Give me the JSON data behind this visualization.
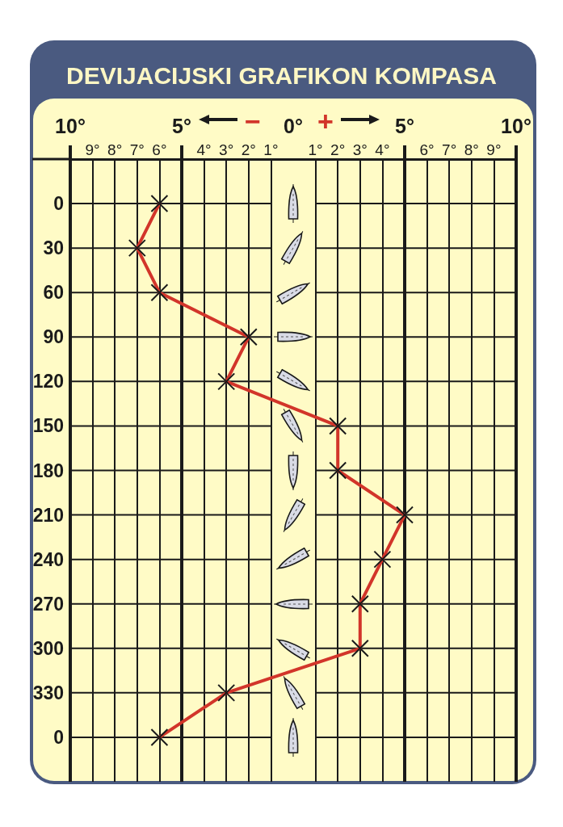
{
  "chart_data": {
    "type": "line",
    "title": "DEVIJACIJSKI GRAFIKON KOMPASA",
    "orientation": "horizontal",
    "categories": [
      null,
      "0",
      "30",
      "60",
      "90",
      "120",
      "150",
      "180",
      "210",
      "240",
      "270",
      "300",
      "330",
      "0",
      null
    ],
    "series": [
      {
        "color": "#d2352a",
        "values": [
          null,
          -6,
          -7,
          -6,
          -2,
          -3,
          2,
          2,
          5,
          4,
          3,
          3,
          -3,
          -6,
          null
        ]
      }
    ],
    "xlim": [
      -10,
      10
    ],
    "xticks": [
      {
        "value": -9,
        "label": "9°"
      },
      {
        "value": -8,
        "label": "8°"
      },
      {
        "value": -7,
        "label": "7°"
      },
      {
        "value": -6,
        "label": "6°"
      },
      {
        "value": -4,
        "label": "4°"
      },
      {
        "value": -3,
        "label": "3°"
      },
      {
        "value": -2,
        "label": "2°"
      },
      {
        "value": -1,
        "label": "1°"
      },
      {
        "value": 1,
        "label": "1°"
      },
      {
        "value": 2,
        "label": "2°"
      },
      {
        "value": 3,
        "label": "3°"
      },
      {
        "value": 4,
        "label": "4°"
      },
      {
        "value": 6,
        "label": "6°"
      },
      {
        "value": 7,
        "label": "7°"
      },
      {
        "value": 8,
        "label": "8°"
      },
      {
        "value": 9,
        "label": "9°"
      }
    ],
    "x2lim": [
      -10,
      10
    ],
    "x2ticks": [
      {
        "value": -10,
        "label": "10°"
      },
      {
        "value": -5,
        "label": "5°"
      },
      {
        "value": 0,
        "label": "0°"
      },
      {
        "value": 5,
        "label": "5°"
      },
      {
        "value": 10,
        "label": "10°"
      }
    ],
    "annotations": [
      "−",
      "+"
    ],
    "grid": true,
    "marker": "cross"
  }
}
